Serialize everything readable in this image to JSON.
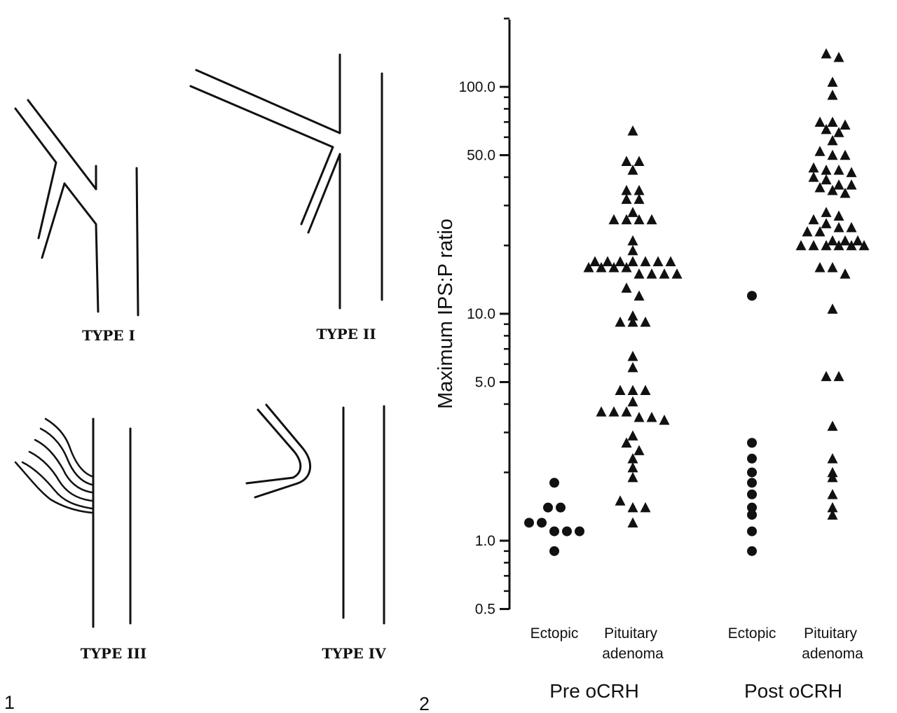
{
  "panel1": {
    "number": "1",
    "types": [
      {
        "id": "type-1",
        "label": "TYPE I"
      },
      {
        "id": "type-2",
        "label": "TYPE II"
      },
      {
        "id": "type-3",
        "label": "TYPE III"
      },
      {
        "id": "type-4",
        "label": "TYPE IV"
      }
    ]
  },
  "panel2": {
    "number": "2"
  },
  "chart_data": {
    "type": "scatter",
    "title": "",
    "xlabel": "",
    "ylabel": "Maximum IPS:P ratio",
    "y_scale": "log",
    "ylim": [
      0.5,
      200
    ],
    "yticks": [
      0.5,
      1.0,
      5.0,
      10.0,
      50.0,
      100.0
    ],
    "ytick_labels": [
      "0.5",
      "1.0",
      "5.0",
      "10.0",
      "50.0",
      "100.0"
    ],
    "groups": [
      "Pre oCRH",
      "Post oCRH"
    ],
    "categories": [
      "Ectopic",
      "Pituitary adenoma",
      "Ectopic",
      "Pituitary adenoma"
    ],
    "category_group": [
      "Pre oCRH",
      "Pre oCRH",
      "Post oCRH",
      "Post oCRH"
    ],
    "series": [
      {
        "category": "Ectopic",
        "group": "Pre oCRH",
        "marker": "circle",
        "values": [
          1.8,
          1.4,
          1.4,
          1.2,
          1.2,
          1.1,
          1.1,
          1.1,
          0.9
        ]
      },
      {
        "category": "Pituitary adenoma",
        "group": "Pre oCRH",
        "marker": "triangle",
        "values": [
          64,
          47,
          47,
          43,
          35,
          35,
          32,
          32,
          28,
          26,
          26,
          26,
          26,
          21,
          19,
          17,
          17,
          17,
          17,
          17,
          17,
          17,
          16,
          16,
          16,
          16,
          15,
          15,
          15,
          15,
          13,
          12,
          9.8,
          9.2,
          9.2,
          9.2,
          6.5,
          5.8,
          4.6,
          4.6,
          4.6,
          4.1,
          3.7,
          3.7,
          3.7,
          3.5,
          3.5,
          3.4,
          2.9,
          2.7,
          2.5,
          2.3,
          2.1,
          1.9,
          1.5,
          1.4,
          1.4,
          1.2
        ]
      },
      {
        "category": "Ectopic",
        "group": "Post oCRH",
        "marker": "circle",
        "values": [
          12,
          2.7,
          2.3,
          2.0,
          1.8,
          1.6,
          1.4,
          1.3,
          1.1,
          0.9
        ]
      },
      {
        "category": "Pituitary adenoma",
        "group": "Post oCRH",
        "marker": "triangle",
        "values": [
          140,
          135,
          105,
          92,
          70,
          70,
          68,
          65,
          63,
          58,
          52,
          50,
          50,
          44,
          43,
          43,
          42,
          40,
          39,
          37,
          37,
          36,
          35,
          34,
          28,
          27,
          26,
          25,
          24,
          24,
          23,
          23,
          21,
          21,
          21,
          20,
          20,
          20,
          20,
          20,
          20,
          16,
          16,
          15,
          10.5,
          5.3,
          5.3,
          3.2,
          2.3,
          2.0,
          1.9,
          1.6,
          1.4,
          1.3
        ]
      }
    ]
  }
}
